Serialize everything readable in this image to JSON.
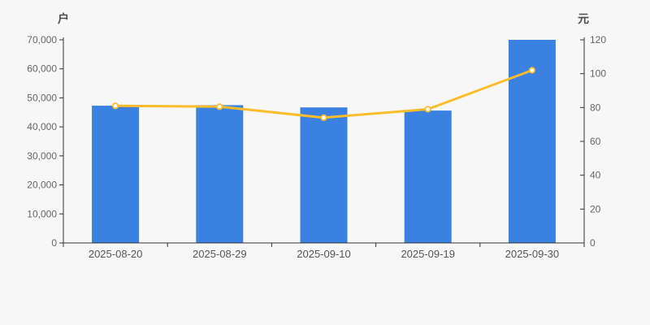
{
  "page": {
    "background": "#f7f7f7"
  },
  "chart_data": {
    "type": "bar",
    "overlay": "line",
    "title": "",
    "legend": false,
    "grid": false,
    "categories": [
      "2025-08-20",
      "2025-08-29",
      "2025-09-10",
      "2025-09-19",
      "2025-09-30"
    ],
    "bar_series": {
      "axis": "left",
      "unit": "户",
      "values": [
        47300,
        47500,
        46700,
        45600,
        70000
      ],
      "color": "#3a81e2"
    },
    "line_series": {
      "axis": "right",
      "unit": "元",
      "values": [
        81,
        80.5,
        74,
        79,
        102
      ],
      "color": "#fbbd2b",
      "marker_fill": "#ffffff"
    },
    "left_axis": {
      "title": "户",
      "min": 0,
      "max": 70000,
      "step": 10000,
      "tick_labels": [
        "0",
        "10,000",
        "20,000",
        "30,000",
        "40,000",
        "50,000",
        "60,000",
        "70,000"
      ]
    },
    "right_axis": {
      "title": "元",
      "min": 0,
      "max": 120,
      "step": 20,
      "tick_labels": [
        "0",
        "20",
        "40",
        "60",
        "80",
        "100",
        "120"
      ]
    },
    "colors": {
      "axis_line": "#333333",
      "tick_text": "#666666",
      "category_text": "#555555",
      "background": "#f7f7f7"
    }
  }
}
